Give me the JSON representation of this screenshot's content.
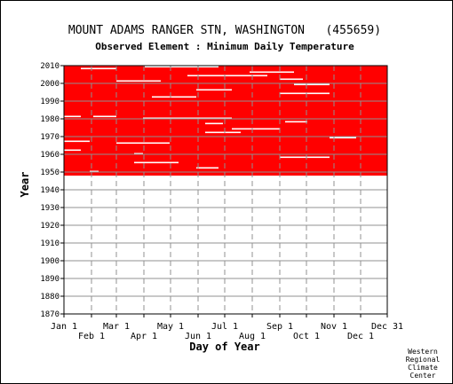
{
  "chart_data": {
    "type": "heatmap",
    "title": "MOUNT ADAMS RANGER STN, WASHINGTON   (455659)",
    "subtitle": "Observed Element : Minimum Daily Temperature",
    "xlabel": "Day of Year",
    "ylabel": "Year",
    "ylim": [
      1870,
      2010
    ],
    "y_ticks": [
      1870,
      1880,
      1890,
      1900,
      1910,
      1920,
      1930,
      1940,
      1950,
      1960,
      1970,
      1980,
      1990,
      2000,
      2010
    ],
    "x_ticks_row1": [
      {
        "label": "Jan 1",
        "day": 1
      },
      {
        "label": "Mar 1",
        "day": 60
      },
      {
        "label": "May 1",
        "day": 121
      },
      {
        "label": "Jul 1",
        "day": 182
      },
      {
        "label": "Sep 1",
        "day": 244
      },
      {
        "label": "Nov 1",
        "day": 305
      },
      {
        "label": "Dec 31",
        "day": 365
      }
    ],
    "x_ticks_row2": [
      {
        "label": "Feb 1",
        "day": 32
      },
      {
        "label": "Apr 1",
        "day": 91
      },
      {
        "label": "Jun 1",
        "day": 152
      },
      {
        "label": "Aug 1",
        "day": 213
      },
      {
        "label": "Oct 1",
        "day": 274
      },
      {
        "label": "Dec 1",
        "day": 335
      }
    ],
    "data_color": "#ff0000",
    "observed_years": [
      1948,
      2010
    ],
    "observed_day_range": [
      1,
      365
    ],
    "grid": true,
    "gap_segments": [
      {
        "year": 2009,
        "day_start": 92,
        "day_end": 175
      },
      {
        "year": 2008,
        "day_start": 20,
        "day_end": 60
      },
      {
        "year": 2006,
        "day_start": 210,
        "day_end": 260
      },
      {
        "year": 2004,
        "day_start": 140,
        "day_end": 230
      },
      {
        "year": 2002,
        "day_start": 244,
        "day_end": 270
      },
      {
        "year": 2001,
        "day_start": 60,
        "day_end": 110
      },
      {
        "year": 1999,
        "day_start": 260,
        "day_end": 300
      },
      {
        "year": 1996,
        "day_start": 150,
        "day_end": 190
      },
      {
        "year": 1994,
        "day_start": 244,
        "day_end": 300
      },
      {
        "year": 1992,
        "day_start": 100,
        "day_end": 150
      },
      {
        "year": 1981,
        "day_start": 1,
        "day_end": 20
      },
      {
        "year": 1981,
        "day_start": 34,
        "day_end": 60
      },
      {
        "year": 1980,
        "day_start": 90,
        "day_end": 190
      },
      {
        "year": 1978,
        "day_start": 250,
        "day_end": 275
      },
      {
        "year": 1977,
        "day_start": 160,
        "day_end": 180
      },
      {
        "year": 1974,
        "day_start": 190,
        "day_end": 244
      },
      {
        "year": 1972,
        "day_start": 160,
        "day_end": 200
      },
      {
        "year": 1969,
        "day_start": 300,
        "day_end": 330
      },
      {
        "year": 1967,
        "day_start": 1,
        "day_end": 30
      },
      {
        "year": 1966,
        "day_start": 60,
        "day_end": 120
      },
      {
        "year": 1962,
        "day_start": 1,
        "day_end": 20
      },
      {
        "year": 1960,
        "day_start": 80,
        "day_end": 90
      },
      {
        "year": 1958,
        "day_start": 244,
        "day_end": 300
      },
      {
        "year": 1955,
        "day_start": 80,
        "day_end": 130
      },
      {
        "year": 1952,
        "day_start": 150,
        "day_end": 175
      },
      {
        "year": 1950,
        "day_start": 30,
        "day_end": 40
      }
    ]
  },
  "footer": {
    "line1": "Western",
    "line2": "Regional",
    "line3": "Climate",
    "line4": "Center"
  }
}
